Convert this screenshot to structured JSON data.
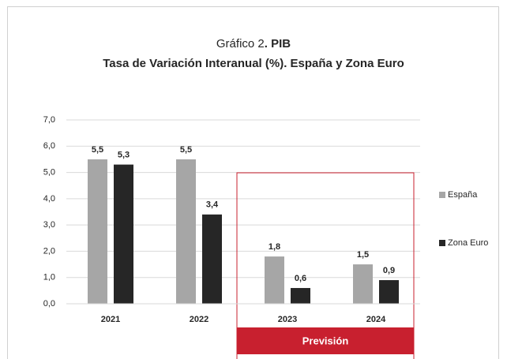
{
  "chart_data": {
    "type": "bar",
    "title": [
      "Gráfico 2",
      ". PIB"
    ],
    "subtitle": "Tasa de Variación Interanual (%). España y Zona Euro",
    "categories": [
      "2021",
      "2022",
      "2023",
      "2024"
    ],
    "series": [
      {
        "name": "España",
        "color": "#a6a6a6",
        "values": [
          5.5,
          5.5,
          1.8,
          1.5
        ],
        "value_labels": [
          "5,5",
          "5,5",
          "1,8",
          "1,5"
        ]
      },
      {
        "name": "Zona Euro",
        "color": "#262626",
        "values": [
          5.3,
          3.4,
          0.6,
          0.9
        ],
        "value_labels": [
          "5,3",
          "3,4",
          "0,6",
          "0,9"
        ]
      }
    ],
    "ylim": [
      0,
      7
    ],
    "yticks": [
      {
        "value": 0,
        "label": "0,0"
      },
      {
        "value": 1,
        "label": "1,0"
      },
      {
        "value": 2,
        "label": "2,0"
      },
      {
        "value": 3,
        "label": "3,0"
      },
      {
        "value": 4,
        "label": "4,0"
      },
      {
        "value": 5,
        "label": "5,0"
      },
      {
        "value": 6,
        "label": "6,0"
      },
      {
        "value": 7,
        "label": "7,0"
      }
    ],
    "grid": true,
    "legend": "right",
    "annotation": {
      "text": "Previsión",
      "color": "#c8202f"
    }
  }
}
